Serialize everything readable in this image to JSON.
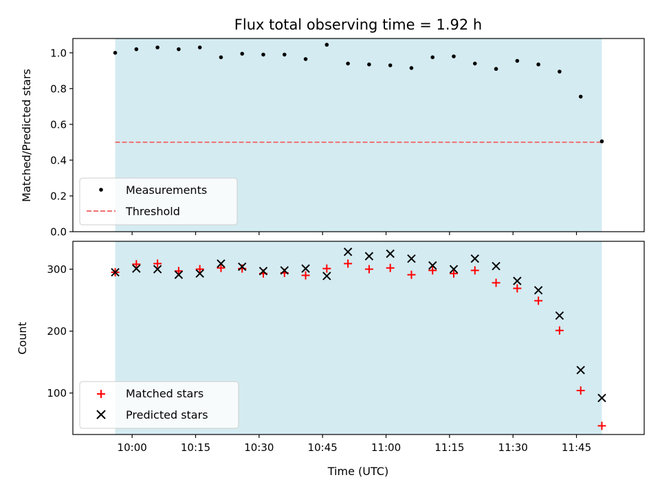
{
  "chart_data": [
    {
      "type": "scatter",
      "title": "Flux total observing time = 1.92 h",
      "xlabel": "",
      "ylabel": "Matched/Predicted stars",
      "x_unit": "time (UTC)",
      "ylim": [
        0.0,
        1.08
      ],
      "yticks": [
        0.0,
        0.2,
        0.4,
        0.6,
        0.8,
        1.0
      ],
      "ytick_labels": [
        "0.0",
        "0.2",
        "0.4",
        "0.6",
        "0.8",
        "1.0"
      ],
      "grid": false,
      "legend_position": "lower-left",
      "shaded_range": [
        "09:56",
        "11:51"
      ],
      "shade_color": "#d4ebf1",
      "series": [
        {
          "name": "Measurements",
          "marker": "dot",
          "color": "#000000",
          "x": [
            "09:56",
            "10:01",
            "10:06",
            "10:11",
            "10:16",
            "10:21",
            "10:26",
            "10:31",
            "10:36",
            "10:41",
            "10:46",
            "10:51",
            "10:56",
            "11:01",
            "11:06",
            "11:11",
            "11:16",
            "11:21",
            "11:26",
            "11:31",
            "11:36",
            "11:41",
            "11:46",
            "11:51"
          ],
          "y": [
            1.0,
            1.02,
            1.03,
            1.02,
            1.03,
            0.975,
            0.995,
            0.99,
            0.99,
            0.965,
            1.045,
            0.94,
            0.935,
            0.93,
            0.915,
            0.975,
            0.98,
            0.94,
            0.91,
            0.955,
            0.935,
            0.895,
            0.755,
            0.505
          ]
        },
        {
          "name": "Threshold",
          "marker": "dashed-line",
          "color": "#f07070",
          "x": [
            "09:56",
            "11:51"
          ],
          "y": [
            0.5,
            0.5
          ]
        }
      ]
    },
    {
      "type": "scatter",
      "title": "",
      "xlabel": "Time (UTC)",
      "ylabel": "Count",
      "ylim": [
        33,
        345
      ],
      "yticks": [
        100,
        200,
        300
      ],
      "ytick_labels": [
        "100",
        "200",
        "300"
      ],
      "xticks": [
        "10:00",
        "10:15",
        "10:30",
        "10:45",
        "11:00",
        "11:15",
        "11:30",
        "11:45"
      ],
      "xlim": [
        "09:46",
        "12:01"
      ],
      "grid": false,
      "legend_position": "lower-left",
      "shaded_range": [
        "09:56",
        "11:51"
      ],
      "shade_color": "#d4ebf1",
      "series": [
        {
          "name": "Matched stars",
          "marker": "plus",
          "color": "#ff0000",
          "x": [
            "09:56",
            "10:01",
            "10:06",
            "10:11",
            "10:16",
            "10:21",
            "10:26",
            "10:31",
            "10:36",
            "10:41",
            "10:46",
            "10:51",
            "10:56",
            "11:01",
            "11:06",
            "11:11",
            "11:16",
            "11:21",
            "11:26",
            "11:31",
            "11:36",
            "11:41",
            "11:46",
            "11:51"
          ],
          "y": [
            295,
            308,
            309,
            297,
            300,
            302,
            301,
            293,
            294,
            290,
            301,
            309,
            300,
            302,
            291,
            298,
            293,
            298,
            278,
            269,
            249,
            201,
            104,
            47
          ]
        },
        {
          "name": "Predicted stars",
          "marker": "x",
          "color": "#000000",
          "x": [
            "09:56",
            "10:01",
            "10:06",
            "10:11",
            "10:16",
            "10:21",
            "10:26",
            "10:31",
            "10:36",
            "10:41",
            "10:46",
            "10:51",
            "10:56",
            "11:01",
            "11:06",
            "11:11",
            "11:16",
            "11:21",
            "11:26",
            "11:31",
            "11:36",
            "11:41",
            "11:46",
            "11:51"
          ],
          "y": [
            295,
            301,
            300,
            291,
            293,
            309,
            304,
            297,
            298,
            301,
            289,
            328,
            321,
            325,
            317,
            306,
            300,
            317,
            305,
            281,
            266,
            225,
            137,
            92
          ]
        }
      ]
    }
  ]
}
